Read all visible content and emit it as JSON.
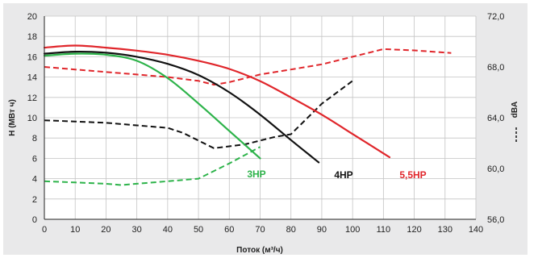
{
  "chart_data": {
    "type": "line",
    "xlabel": "Поток (м³/ч)",
    "ylabel_left": "H (МВт ч)",
    "ylabel_right": "dBA",
    "xlim": [
      0,
      140
    ],
    "ylim_left": [
      0,
      20
    ],
    "ylim_right": [
      56.0,
      72.0
    ],
    "x_ticks": [
      "0",
      "10",
      "20",
      "30",
      "40",
      "50",
      "60",
      "70",
      "80",
      "90",
      "100",
      "110",
      "120",
      "130",
      "140"
    ],
    "y_left_ticks": [
      "0",
      "2",
      "4",
      "6",
      "8",
      "10",
      "12",
      "14",
      "16",
      "18",
      "20"
    ],
    "y_right_ticks": [
      "56,0",
      "60,0",
      "64,0",
      "68,0",
      "72,0"
    ],
    "grid": true,
    "colors": {
      "3HP": "#2db34a",
      "4HP": "#111111",
      "5.5HP": "#e0262b"
    },
    "head_curves": [
      {
        "name": "3HP",
        "x": [
          0,
          10,
          20,
          30,
          40,
          50,
          60,
          70
        ],
        "y": [
          16.1,
          16.3,
          16.2,
          15.6,
          13.9,
          11.4,
          8.7,
          6.0
        ]
      },
      {
        "name": "4HP",
        "x": [
          0,
          10,
          20,
          30,
          40,
          50,
          60,
          70,
          80,
          89
        ],
        "y": [
          16.3,
          16.5,
          16.4,
          16.0,
          15.3,
          14.2,
          12.5,
          10.3,
          7.8,
          5.6
        ]
      },
      {
        "name": "5.5HP",
        "x": [
          0,
          10,
          20,
          30,
          40,
          50,
          60,
          70,
          80,
          90,
          100,
          112
        ],
        "y": [
          16.9,
          17.1,
          16.9,
          16.6,
          16.2,
          15.6,
          14.8,
          13.6,
          12.0,
          10.3,
          8.4,
          6.1
        ]
      }
    ],
    "noise_curves": [
      {
        "name": "3HP",
        "x": [
          0,
          10,
          20,
          25,
          30,
          40,
          50,
          60,
          70
        ],
        "y": [
          59.0,
          58.9,
          58.8,
          58.7,
          58.8,
          59.0,
          59.2,
          60.4,
          61.7
        ]
      },
      {
        "name": "4HP",
        "x": [
          0,
          10,
          20,
          30,
          40,
          45,
          55,
          65,
          75,
          80,
          90,
          100
        ],
        "y": [
          63.8,
          63.7,
          63.6,
          63.4,
          63.2,
          62.8,
          61.6,
          61.9,
          62.5,
          62.7,
          65.1,
          66.9
        ]
      },
      {
        "name": "5.5HP",
        "x": [
          0,
          10,
          20,
          30,
          40,
          50,
          55,
          60,
          70,
          80,
          90,
          100,
          110,
          120,
          132
        ],
        "y": [
          68.0,
          67.8,
          67.6,
          67.4,
          67.2,
          66.9,
          66.6,
          66.8,
          67.4,
          67.8,
          68.2,
          68.8,
          69.4,
          69.3,
          69.1
        ]
      }
    ],
    "series_labels": [
      {
        "text": "3HP",
        "series": "3HP"
      },
      {
        "text": "4HP",
        "series": "4HP"
      },
      {
        "text": "5,5HP",
        "series": "5.5HP"
      }
    ]
  }
}
